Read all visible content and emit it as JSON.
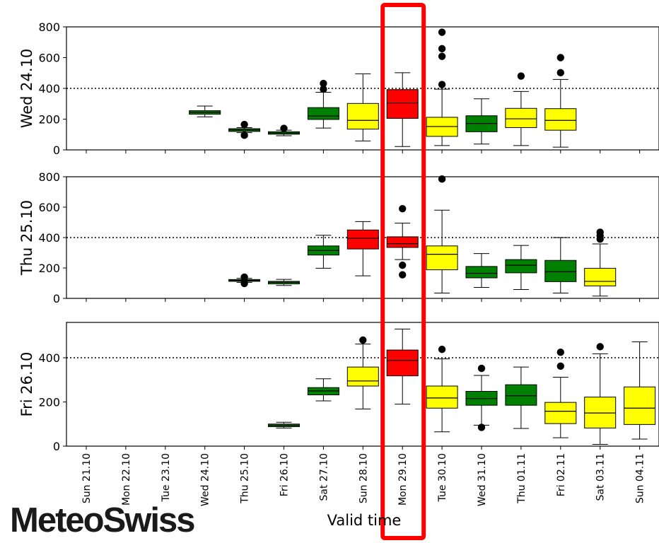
{
  "chart_data": {
    "type": "boxplot",
    "xlabel": "Valid time",
    "categories": [
      "Sun 21.10",
      "Mon 22.10",
      "Tue 23.10",
      "Wed 24.10",
      "Thu 25.10",
      "Fri 26.10",
      "Sat 27.10",
      "Sun 28.10",
      "Mon 29.10",
      "Tue 30.10",
      "Wed 31.10",
      "Thu 01.11",
      "Fri 02.11",
      "Sat 03.11",
      "Sun 04.11"
    ],
    "highlighted_category": "Mon 29.10",
    "reference_line": 400,
    "colors": {
      "green": "#008000",
      "yellow": "#ffff00",
      "red": "#ff0000",
      "highlight": "#ff0000"
    },
    "panels": [
      {
        "label": "Wed 24.10",
        "ylim": [
          0,
          800
        ],
        "yticks": [
          0,
          200,
          400,
          600,
          800
        ],
        "boxes": [
          {
            "category": "Wed 24.10",
            "color": "green",
            "whislo": 215,
            "q1": 232,
            "med": 245,
            "q3": 255,
            "whishi": 285,
            "fliers": []
          },
          {
            "category": "Thu 25.10",
            "color": "green",
            "whislo": 112,
            "q1": 120,
            "med": 130,
            "q3": 138,
            "whishi": 145,
            "fliers": [
              95,
              165
            ]
          },
          {
            "category": "Fri 26.10",
            "color": "green",
            "whislo": 92,
            "q1": 102,
            "med": 110,
            "q3": 118,
            "whishi": 128,
            "fliers": [
              140
            ]
          },
          {
            "category": "Sat 27.10",
            "color": "green",
            "whislo": 142,
            "q1": 198,
            "med": 220,
            "q3": 275,
            "whishi": 375,
            "fliers": [
              395,
              432
            ]
          },
          {
            "category": "Sun 28.10",
            "color": "yellow",
            "whislo": 58,
            "q1": 135,
            "med": 192,
            "q3": 302,
            "whishi": 495,
            "fliers": []
          },
          {
            "category": "Mon 29.10",
            "color": "red",
            "whislo": 22,
            "q1": 205,
            "med": 305,
            "q3": 392,
            "whishi": 502,
            "fliers": []
          },
          {
            "category": "Tue 30.10",
            "color": "yellow",
            "whislo": 28,
            "q1": 88,
            "med": 152,
            "q3": 212,
            "whishi": 395,
            "fliers": [
              425,
              608,
              658,
              765
            ]
          },
          {
            "category": "Wed 31.10",
            "color": "green",
            "whislo": 38,
            "q1": 118,
            "med": 172,
            "q3": 222,
            "whishi": 332,
            "fliers": []
          },
          {
            "category": "Thu 01.11",
            "color": "yellow",
            "whislo": 28,
            "q1": 145,
            "med": 202,
            "q3": 270,
            "whishi": 380,
            "fliers": [
              480
            ]
          },
          {
            "category": "Fri 02.11",
            "color": "yellow",
            "whislo": 18,
            "q1": 128,
            "med": 192,
            "q3": 268,
            "whishi": 458,
            "fliers": [
              502,
              600
            ]
          }
        ]
      },
      {
        "label": "Thu 25.10",
        "ylim": [
          0,
          800
        ],
        "yticks": [
          0,
          200,
          400,
          600,
          800
        ],
        "boxes": [
          {
            "category": "Thu 25.10",
            "color": "green",
            "whislo": 105,
            "q1": 112,
            "med": 118,
            "q3": 124,
            "whishi": 132,
            "fliers": [
              98,
              140
            ]
          },
          {
            "category": "Fri 26.10",
            "color": "green",
            "whislo": 85,
            "q1": 95,
            "med": 105,
            "q3": 112,
            "whishi": 125,
            "fliers": []
          },
          {
            "category": "Sat 27.10",
            "color": "green",
            "whislo": 198,
            "q1": 285,
            "med": 315,
            "q3": 345,
            "whishi": 415,
            "fliers": []
          },
          {
            "category": "Sun 28.10",
            "color": "red",
            "whislo": 148,
            "q1": 325,
            "med": 395,
            "q3": 450,
            "whishi": 505,
            "fliers": []
          },
          {
            "category": "Mon 29.10",
            "color": "red",
            "whislo": 255,
            "q1": 335,
            "med": 360,
            "q3": 405,
            "whishi": 495,
            "fliers": [
              155,
              218,
              590
            ]
          },
          {
            "category": "Tue 30.10",
            "color": "yellow",
            "whislo": 35,
            "q1": 188,
            "med": 290,
            "q3": 345,
            "whishi": 580,
            "fliers": [
              785
            ]
          },
          {
            "category": "Wed 31.10",
            "color": "green",
            "whislo": 72,
            "q1": 135,
            "med": 165,
            "q3": 210,
            "whishi": 295,
            "fliers": []
          },
          {
            "category": "Thu 01.11",
            "color": "green",
            "whislo": 58,
            "q1": 168,
            "med": 218,
            "q3": 255,
            "whishi": 348,
            "fliers": []
          },
          {
            "category": "Fri 02.11",
            "color": "green",
            "whislo": 35,
            "q1": 110,
            "med": 175,
            "q3": 250,
            "whishi": 400,
            "fliers": []
          },
          {
            "category": "Sat 03.11",
            "color": "yellow",
            "whislo": 15,
            "q1": 82,
            "med": 112,
            "q3": 198,
            "whishi": 358,
            "fliers": [
              390,
              412,
              435
            ]
          }
        ]
      },
      {
        "label": "Fri 26.10",
        "ylim": [
          0,
          560
        ],
        "yticks": [
          0,
          200,
          400
        ],
        "boxes": [
          {
            "category": "Fri 26.10",
            "color": "green",
            "whislo": 82,
            "q1": 88,
            "med": 94,
            "q3": 100,
            "whishi": 108,
            "fliers": []
          },
          {
            "category": "Sat 27.10",
            "color": "green",
            "whislo": 205,
            "q1": 232,
            "med": 250,
            "q3": 265,
            "whishi": 305,
            "fliers": []
          },
          {
            "category": "Sun 28.10",
            "color": "yellow",
            "whislo": 168,
            "q1": 272,
            "med": 295,
            "q3": 358,
            "whishi": 462,
            "fliers": [
              480
            ]
          },
          {
            "category": "Mon 29.10",
            "color": "red",
            "whislo": 190,
            "q1": 318,
            "med": 388,
            "q3": 435,
            "whishi": 530,
            "fliers": []
          },
          {
            "category": "Tue 30.10",
            "color": "yellow",
            "whislo": 65,
            "q1": 172,
            "med": 218,
            "q3": 272,
            "whishi": 395,
            "fliers": [
              438
            ]
          },
          {
            "category": "Wed 31.10",
            "color": "green",
            "whislo": 95,
            "q1": 185,
            "med": 215,
            "q3": 248,
            "whishi": 320,
            "fliers": [
              85,
              352
            ]
          },
          {
            "category": "Thu 01.11",
            "color": "green",
            "whislo": 80,
            "q1": 185,
            "med": 228,
            "q3": 278,
            "whishi": 358,
            "fliers": []
          },
          {
            "category": "Fri 02.11",
            "color": "yellow",
            "whislo": 38,
            "q1": 102,
            "med": 158,
            "q3": 198,
            "whishi": 312,
            "fliers": [
              362,
              425
            ]
          },
          {
            "category": "Sat 03.11",
            "color": "yellow",
            "whislo": 8,
            "q1": 82,
            "med": 150,
            "q3": 222,
            "whishi": 418,
            "fliers": [
              450
            ]
          },
          {
            "category": "Sun 04.11",
            "color": "yellow",
            "whislo": 32,
            "q1": 98,
            "med": 172,
            "q3": 268,
            "whishi": 472,
            "fliers": []
          }
        ]
      }
    ]
  },
  "branding": {
    "logo_text": "MeteoSwiss"
  }
}
